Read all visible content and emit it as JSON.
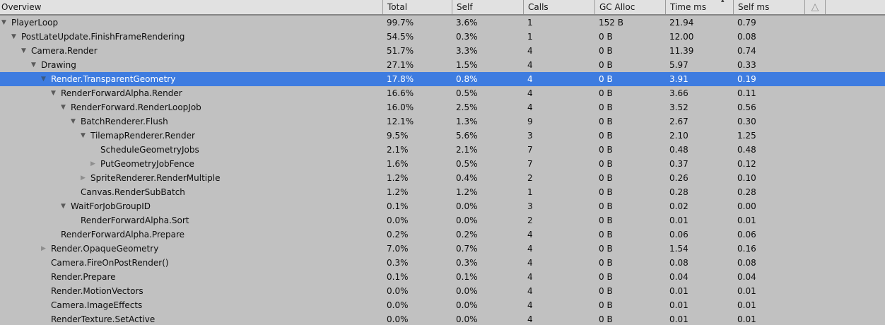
{
  "header": {
    "overview": "Overview",
    "total": "Total",
    "self": "Self",
    "calls": "Calls",
    "gc_alloc": "GC Alloc",
    "time_ms": "Time ms",
    "self_ms": "Self ms",
    "sort_indicator": "▴",
    "warning_icon": "△"
  },
  "icons": {
    "expanded": "▼",
    "collapsed": "▶"
  },
  "colors": {
    "selection": "#3e7ce0",
    "row_bg": "#c1c1c1",
    "header_bg": "#e1e1e1"
  },
  "rows": [
    {
      "name": "PlayerLoop",
      "level": 0,
      "arrow": "expanded",
      "selected": false,
      "total": "99.7%",
      "self": "3.6%",
      "calls": "1",
      "gc_alloc": "152 B",
      "time_ms": "21.94",
      "self_ms": "0.79"
    },
    {
      "name": "PostLateUpdate.FinishFrameRendering",
      "level": 1,
      "arrow": "expanded",
      "selected": false,
      "total": "54.5%",
      "self": "0.3%",
      "calls": "1",
      "gc_alloc": "0 B",
      "time_ms": "12.00",
      "self_ms": "0.08"
    },
    {
      "name": "Camera.Render",
      "level": 2,
      "arrow": "expanded",
      "selected": false,
      "total": "51.7%",
      "self": "3.3%",
      "calls": "4",
      "gc_alloc": "0 B",
      "time_ms": "11.39",
      "self_ms": "0.74"
    },
    {
      "name": "Drawing",
      "level": 3,
      "arrow": "expanded",
      "selected": false,
      "total": "27.1%",
      "self": "1.5%",
      "calls": "4",
      "gc_alloc": "0 B",
      "time_ms": "5.97",
      "self_ms": "0.33"
    },
    {
      "name": "Render.TransparentGeometry",
      "level": 4,
      "arrow": "expanded",
      "selected": true,
      "total": "17.8%",
      "self": "0.8%",
      "calls": "4",
      "gc_alloc": "0 B",
      "time_ms": "3.91",
      "self_ms": "0.19"
    },
    {
      "name": "RenderForwardAlpha.Render",
      "level": 5,
      "arrow": "expanded",
      "selected": false,
      "total": "16.6%",
      "self": "0.5%",
      "calls": "4",
      "gc_alloc": "0 B",
      "time_ms": "3.66",
      "self_ms": "0.11"
    },
    {
      "name": "RenderForward.RenderLoopJob",
      "level": 6,
      "arrow": "expanded",
      "selected": false,
      "total": "16.0%",
      "self": "2.5%",
      "calls": "4",
      "gc_alloc": "0 B",
      "time_ms": "3.52",
      "self_ms": "0.56"
    },
    {
      "name": "BatchRenderer.Flush",
      "level": 7,
      "arrow": "expanded",
      "selected": false,
      "total": "12.1%",
      "self": "1.3%",
      "calls": "9",
      "gc_alloc": "0 B",
      "time_ms": "2.67",
      "self_ms": "0.30"
    },
    {
      "name": "TilemapRenderer.Render",
      "level": 8,
      "arrow": "expanded",
      "selected": false,
      "total": "9.5%",
      "self": "5.6%",
      "calls": "3",
      "gc_alloc": "0 B",
      "time_ms": "2.10",
      "self_ms": "1.25"
    },
    {
      "name": "ScheduleGeometryJobs",
      "level": 9,
      "arrow": "none",
      "selected": false,
      "total": "2.1%",
      "self": "2.1%",
      "calls": "7",
      "gc_alloc": "0 B",
      "time_ms": "0.48",
      "self_ms": "0.48"
    },
    {
      "name": "PutGeometryJobFence",
      "level": 9,
      "arrow": "collapsed",
      "selected": false,
      "total": "1.6%",
      "self": "0.5%",
      "calls": "7",
      "gc_alloc": "0 B",
      "time_ms": "0.37",
      "self_ms": "0.12"
    },
    {
      "name": "SpriteRenderer.RenderMultiple",
      "level": 8,
      "arrow": "collapsed",
      "selected": false,
      "total": "1.2%",
      "self": "0.4%",
      "calls": "2",
      "gc_alloc": "0 B",
      "time_ms": "0.26",
      "self_ms": "0.10"
    },
    {
      "name": "Canvas.RenderSubBatch",
      "level": 7,
      "arrow": "none",
      "selected": false,
      "total": "1.2%",
      "self": "1.2%",
      "calls": "1",
      "gc_alloc": "0 B",
      "time_ms": "0.28",
      "self_ms": "0.28"
    },
    {
      "name": "WaitForJobGroupID",
      "level": 6,
      "arrow": "expanded",
      "selected": false,
      "total": "0.1%",
      "self": "0.0%",
      "calls": "3",
      "gc_alloc": "0 B",
      "time_ms": "0.02",
      "self_ms": "0.00"
    },
    {
      "name": "RenderForwardAlpha.Sort",
      "level": 7,
      "arrow": "none",
      "selected": false,
      "total": "0.0%",
      "self": "0.0%",
      "calls": "2",
      "gc_alloc": "0 B",
      "time_ms": "0.01",
      "self_ms": "0.01"
    },
    {
      "name": "RenderForwardAlpha.Prepare",
      "level": 5,
      "arrow": "none",
      "selected": false,
      "total": "0.2%",
      "self": "0.2%",
      "calls": "4",
      "gc_alloc": "0 B",
      "time_ms": "0.06",
      "self_ms": "0.06"
    },
    {
      "name": "Render.OpaqueGeometry",
      "level": 4,
      "arrow": "collapsed",
      "selected": false,
      "total": "7.0%",
      "self": "0.7%",
      "calls": "4",
      "gc_alloc": "0 B",
      "time_ms": "1.54",
      "self_ms": "0.16"
    },
    {
      "name": "Camera.FireOnPostRender()",
      "level": 4,
      "arrow": "none",
      "selected": false,
      "total": "0.3%",
      "self": "0.3%",
      "calls": "4",
      "gc_alloc": "0 B",
      "time_ms": "0.08",
      "self_ms": "0.08"
    },
    {
      "name": "Render.Prepare",
      "level": 4,
      "arrow": "none",
      "selected": false,
      "total": "0.1%",
      "self": "0.1%",
      "calls": "4",
      "gc_alloc": "0 B",
      "time_ms": "0.04",
      "self_ms": "0.04"
    },
    {
      "name": "Render.MotionVectors",
      "level": 4,
      "arrow": "none",
      "selected": false,
      "total": "0.0%",
      "self": "0.0%",
      "calls": "4",
      "gc_alloc": "0 B",
      "time_ms": "0.01",
      "self_ms": "0.01"
    },
    {
      "name": "Camera.ImageEffects",
      "level": 4,
      "arrow": "none",
      "selected": false,
      "total": "0.0%",
      "self": "0.0%",
      "calls": "4",
      "gc_alloc": "0 B",
      "time_ms": "0.01",
      "self_ms": "0.01"
    },
    {
      "name": "RenderTexture.SetActive",
      "level": 4,
      "arrow": "none",
      "selected": false,
      "total": "0.0%",
      "self": "0.0%",
      "calls": "4",
      "gc_alloc": "0 B",
      "time_ms": "0.01",
      "self_ms": "0.01"
    }
  ]
}
